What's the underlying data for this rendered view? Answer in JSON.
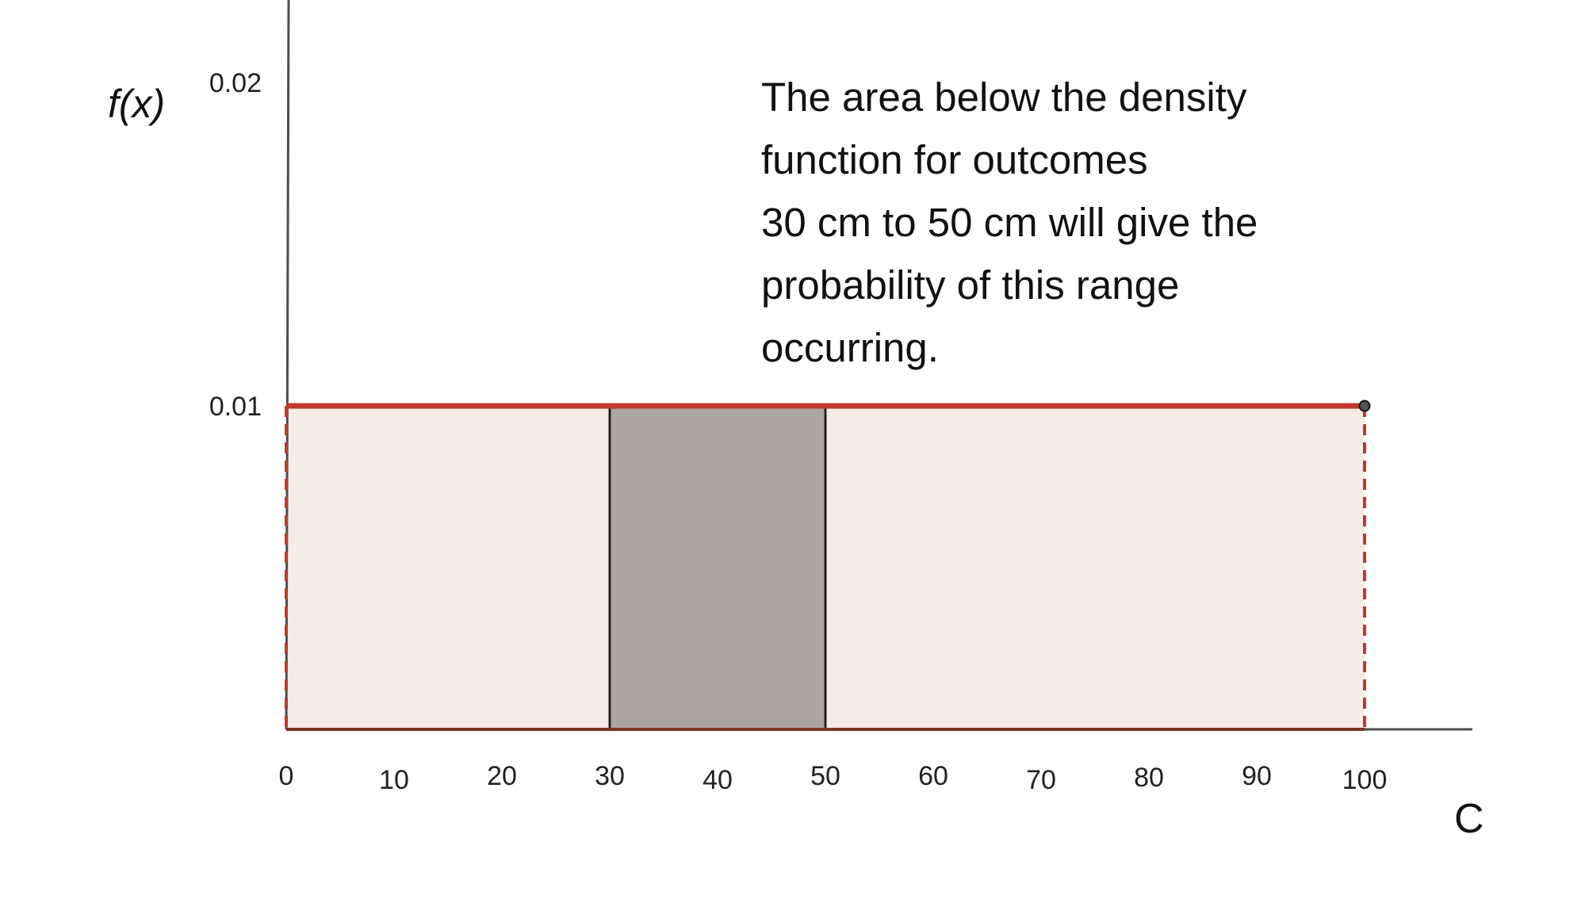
{
  "chart_data": {
    "type": "area",
    "title": "",
    "xlabel": "C",
    "ylabel": "f(x)",
    "xlim": [
      0,
      110
    ],
    "ylim": [
      0,
      0.025
    ],
    "x_ticks": [
      0,
      10,
      20,
      30,
      40,
      50,
      60,
      70,
      80,
      90,
      100
    ],
    "y_ticks": [
      0.01,
      0.02
    ],
    "y_tick_labels": [
      "0.01",
      "0.02"
    ],
    "grid": false,
    "density": {
      "x": [
        0,
        100
      ],
      "y": [
        0.01,
        0.01
      ],
      "endpoint": [
        100,
        0.01
      ]
    },
    "highlight": {
      "x_start": 30,
      "x_end": 50,
      "y": 0.01
    },
    "annotation_lines": [
      "The area below the density",
      "function for outcomes",
      "30 cm to 50 cm will give the",
      "probability of this range",
      "occurring."
    ],
    "colors": {
      "density_line": "#c0392b",
      "density_fill": "#f5ebe7",
      "highlight_fill": "#ada5a2",
      "highlight_stroke": "#222222",
      "axis": "#4d4d4d",
      "baseline": "#7a3322"
    }
  }
}
